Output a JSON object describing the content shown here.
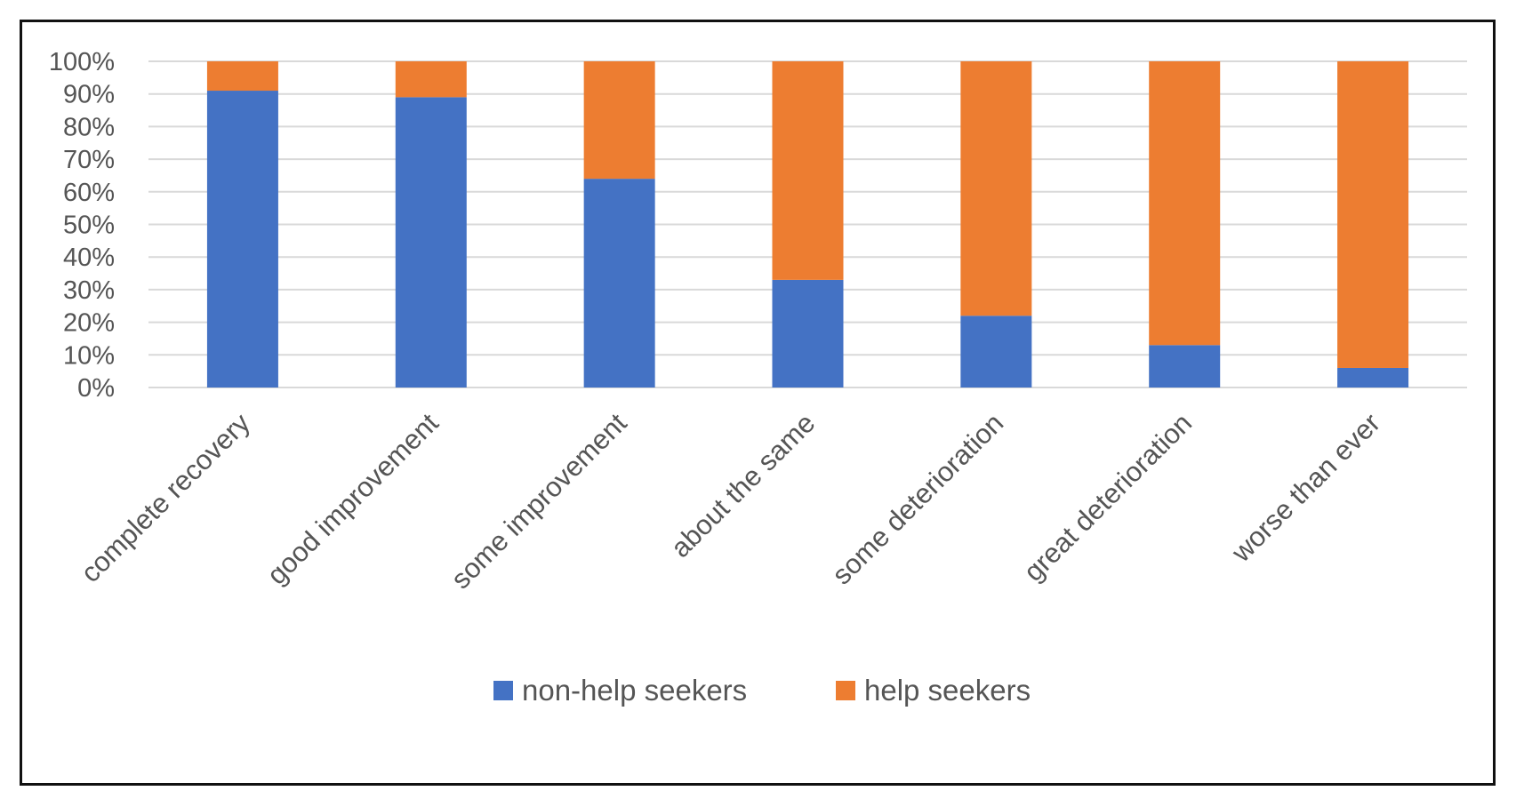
{
  "chart_data": {
    "type": "bar",
    "stacked": true,
    "categories": [
      "complete recovery",
      "good improvement",
      "some improvement",
      "about the same",
      "some deterioration",
      "great deterioration",
      "worse than ever"
    ],
    "series": [
      {
        "name": "non-help seekers",
        "color": "#4472c4",
        "values": [
          91,
          89,
          64,
          33,
          22,
          13,
          6
        ]
      },
      {
        "name": "help seekers",
        "color": "#ed7d31",
        "values": [
          9,
          11,
          36,
          67,
          78,
          87,
          94
        ]
      }
    ],
    "y_ticks": [
      "0%",
      "10%",
      "20%",
      "30%",
      "40%",
      "50%",
      "60%",
      "70%",
      "80%",
      "90%",
      "100%"
    ],
    "ylim": [
      0,
      100
    ],
    "grid": true,
    "legend_position": "bottom"
  }
}
